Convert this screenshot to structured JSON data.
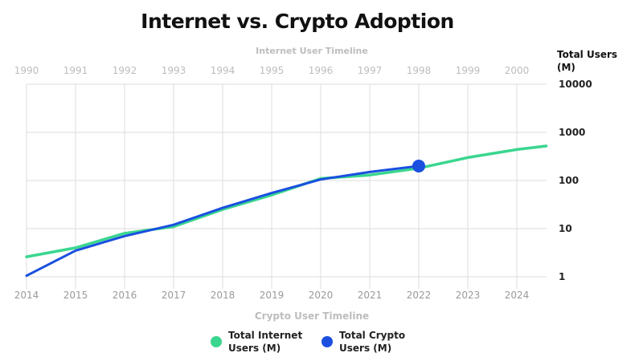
{
  "chart_data": {
    "type": "line",
    "title": "Internet vs. Crypto Adoption",
    "ylabel": "Total Users (M)",
    "y_scale": "log",
    "ylim": [
      1,
      10000
    ],
    "y_ticks": [
      1,
      10,
      100,
      1000,
      10000
    ],
    "grid": true,
    "legend_position": "bottom-center",
    "x_axes": [
      {
        "position": "top",
        "label": "Internet User Timeline",
        "ticks": [
          "1990",
          "1991",
          "1992",
          "1993",
          "1994",
          "1995",
          "1996",
          "1997",
          "1998",
          "1999",
          "2000"
        ]
      },
      {
        "position": "bottom",
        "label": "Crypto User Timeline",
        "ticks": [
          "2014",
          "2015",
          "2016",
          "2017",
          "2018",
          "2019",
          "2020",
          "2021",
          "2022",
          "2023",
          "2024"
        ]
      }
    ],
    "series": [
      {
        "name": "Total Internet Users (M)",
        "axis": "top",
        "color": "#3ad68f",
        "x": [
          1990,
          1991,
          1992,
          1993,
          1994,
          1995,
          1996,
          1997,
          1998,
          1999,
          2000,
          2000.6
        ],
        "y": [
          2.6,
          4,
          8,
          11,
          25,
          50,
          110,
          130,
          180,
          300,
          440,
          520
        ]
      },
      {
        "name": "Total Crypto Users (M)",
        "axis": "bottom",
        "color": "#1a4fe0",
        "x": [
          2014,
          2015,
          2016,
          2017,
          2018,
          2019,
          2020,
          2021,
          2022
        ],
        "y": [
          1.05,
          3.5,
          7,
          12,
          27,
          55,
          105,
          150,
          200
        ],
        "marker_at": 2022
      }
    ]
  }
}
